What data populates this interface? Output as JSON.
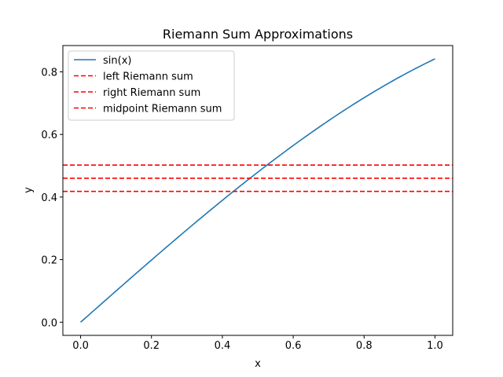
{
  "chart_data": {
    "type": "line",
    "title": "Riemann Sum Approximations",
    "xlabel": "x",
    "ylabel": "y",
    "xlim": [
      -0.05,
      1.05
    ],
    "ylim": [
      -0.042,
      0.884
    ],
    "xticks": [
      0.0,
      0.2,
      0.4,
      0.6,
      0.8,
      1.0
    ],
    "xtick_labels": [
      "0.0",
      "0.2",
      "0.4",
      "0.6",
      "0.8",
      "1.0"
    ],
    "yticks": [
      0.0,
      0.2,
      0.4,
      0.6,
      0.8
    ],
    "ytick_labels": [
      "0.0",
      "0.2",
      "0.4",
      "0.6",
      "0.8"
    ],
    "grid": false,
    "legend_position": "upper-left",
    "series": [
      {
        "name": "sin(x)",
        "kind": "curve",
        "function": "sin",
        "x_range": [
          0,
          1
        ],
        "color": "#1f77b4",
        "style": "solid"
      },
      {
        "name": "left Riemann sum",
        "kind": "hline",
        "y": 0.418,
        "color": "#ff0000",
        "style": "dashed"
      },
      {
        "name": "right Riemann sum",
        "kind": "hline",
        "y": 0.502,
        "color": "#ff0000",
        "style": "dashed"
      },
      {
        "name": "midpoint Riemann sum",
        "kind": "hline",
        "y": 0.46,
        "color": "#ff0000",
        "style": "dashed"
      }
    ]
  }
}
